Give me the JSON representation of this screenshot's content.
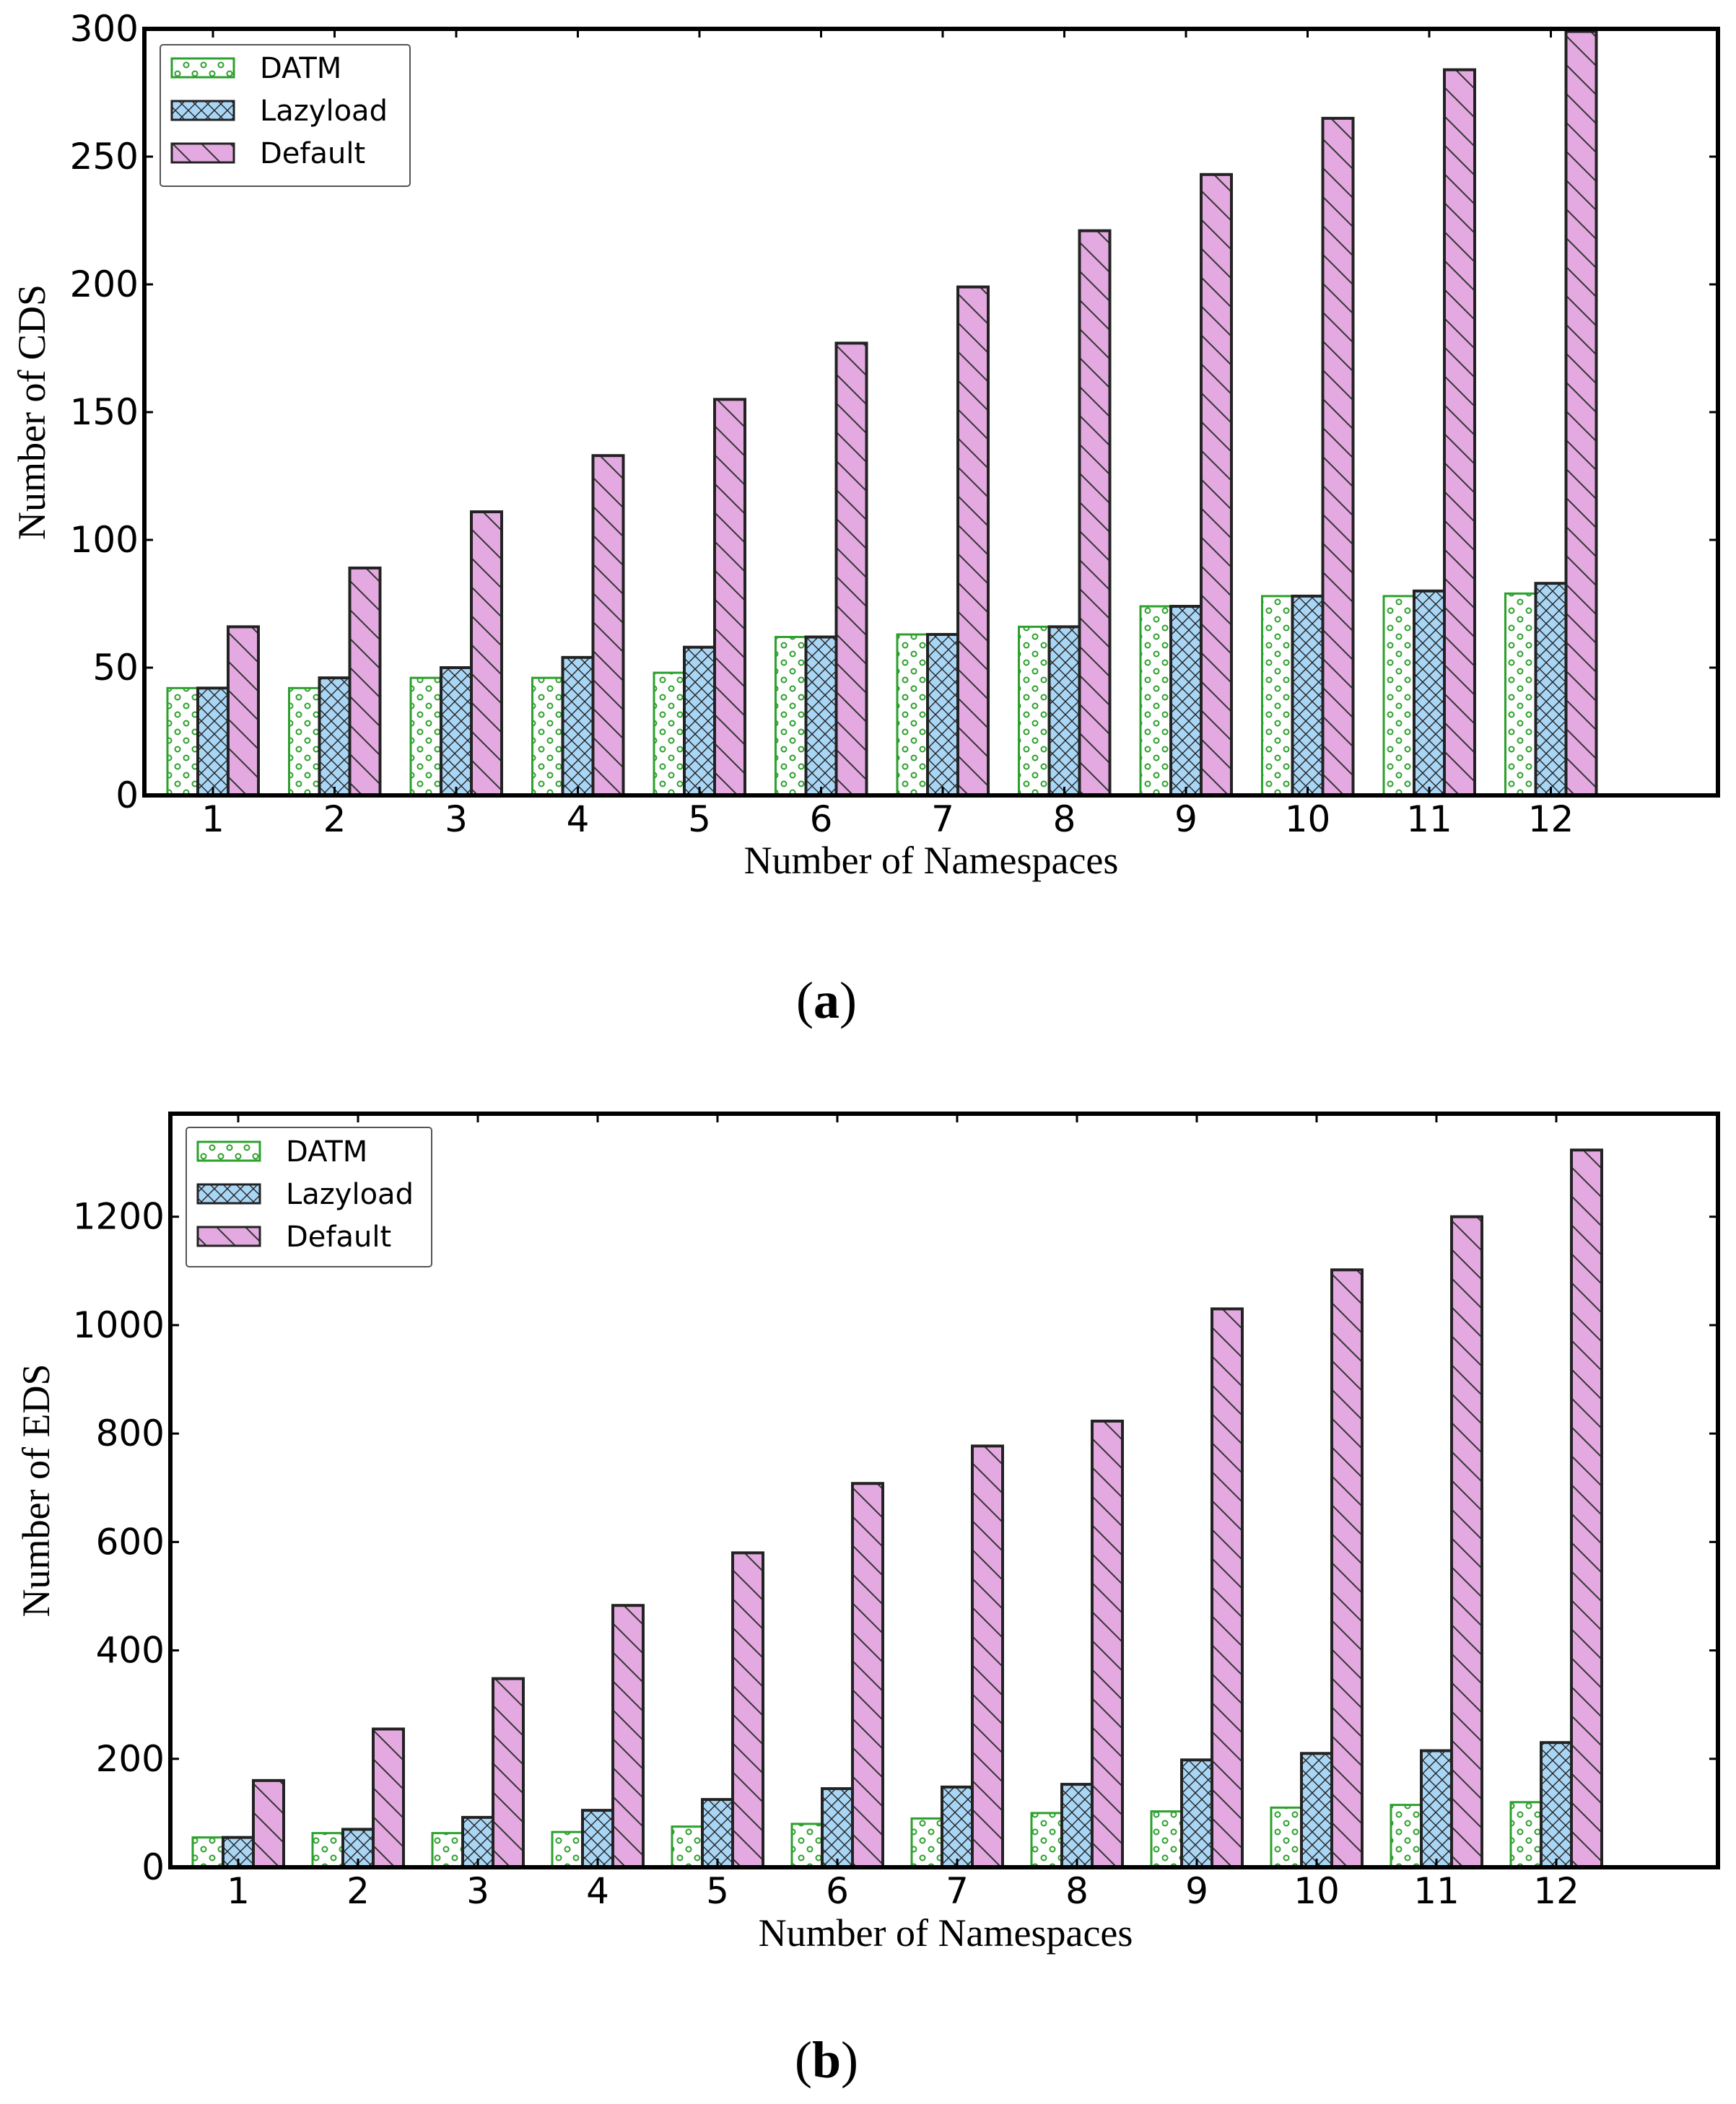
{
  "series_style": {
    "DATM": {
      "fill": "#ffffff",
      "stroke": "#2ca02c",
      "pattern": "dots",
      "pattern_color": "#2ca02c"
    },
    "Lazyload": {
      "fill": "#a9d6f5",
      "stroke": "#222222",
      "pattern": "crosshatch",
      "pattern_color": "#222222"
    },
    "Default": {
      "fill": "#e3a9e0",
      "stroke": "#222222",
      "pattern": "backslash",
      "pattern_color": "#333333"
    }
  },
  "chart_data": [
    {
      "type": "bar",
      "caption_open": "(",
      "caption_letter": "a",
      "caption_close": ")",
      "xlabel": "Number of Namespaces",
      "ylabel": "Number of CDS",
      "ylim": [
        0,
        300
      ],
      "yticks": [
        0,
        50,
        100,
        150,
        200,
        250,
        300
      ],
      "categories": [
        "1",
        "2",
        "3",
        "4",
        "5",
        "6",
        "7",
        "8",
        "9",
        "10",
        "11",
        "12"
      ],
      "legend_position": "top-left",
      "series": [
        {
          "name": "DATM",
          "values": [
            42,
            42,
            46,
            46,
            48,
            62,
            63,
            66,
            74,
            78,
            78,
            79
          ]
        },
        {
          "name": "Lazyload",
          "values": [
            42,
            46,
            50,
            54,
            58,
            62,
            63,
            66,
            74,
            78,
            80,
            83
          ]
        },
        {
          "name": "Default",
          "values": [
            66,
            89,
            111,
            133,
            155,
            177,
            199,
            221,
            243,
            265,
            284,
            299
          ]
        }
      ]
    },
    {
      "type": "bar",
      "caption_open": "(",
      "caption_letter": "b",
      "caption_close": ")",
      "xlabel": "Number of Namespaces",
      "ylabel": "Number of EDS",
      "ylim": [
        0,
        1390
      ],
      "yticks": [
        0,
        200,
        400,
        600,
        800,
        1000,
        1200
      ],
      "categories": [
        "1",
        "2",
        "3",
        "4",
        "5",
        "6",
        "7",
        "8",
        "9",
        "10",
        "11",
        "12"
      ],
      "legend_position": "top-left",
      "series": [
        {
          "name": "DATM",
          "values": [
            55,
            63,
            63,
            65,
            75,
            80,
            90,
            100,
            103,
            110,
            115,
            120
          ]
        },
        {
          "name": "Lazyload",
          "values": [
            55,
            70,
            92,
            105,
            125,
            145,
            148,
            153,
            198,
            210,
            215,
            230
          ]
        },
        {
          "name": "Default",
          "values": [
            160,
            255,
            348,
            483,
            580,
            708,
            777,
            823,
            1030,
            1102,
            1200,
            1323
          ]
        }
      ]
    }
  ]
}
